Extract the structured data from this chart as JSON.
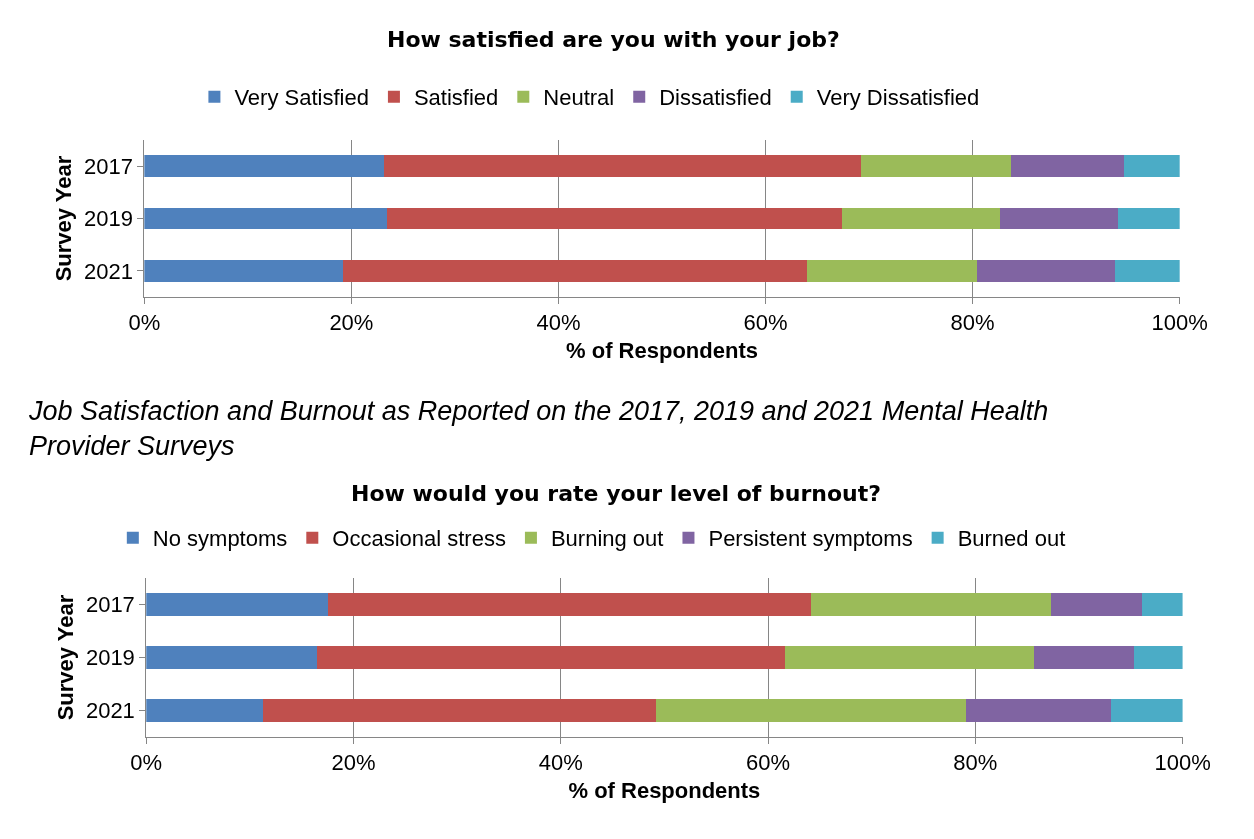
{
  "chart_data": [
    {
      "type": "bar",
      "orientation": "horizontal",
      "stacked": true,
      "title": "How satisfied are you with your job?",
      "xlabel": "% of Respondents",
      "ylabel": "Survey Year",
      "categories": [
        "2017",
        "2019",
        "2021"
      ],
      "xlim": [
        0,
        100
      ],
      "xticks": [
        {
          "value": 0,
          "label": "0%"
        },
        {
          "value": 20,
          "label": "20%"
        },
        {
          "value": 40,
          "label": "40%"
        },
        {
          "value": 60,
          "label": "60%"
        },
        {
          "value": 80,
          "label": "80%"
        },
        {
          "value": 100,
          "label": "100%"
        }
      ],
      "grid": "x",
      "legend": "top",
      "series": [
        {
          "name": "Very Satisfied",
          "color": "#4f81bd",
          "values": [
            23.1,
            23.4,
            19.2
          ]
        },
        {
          "name": "Satisfied",
          "color": "#c0504d",
          "values": [
            46.1,
            44.0,
            44.8
          ]
        },
        {
          "name": "Neutral",
          "color": "#9bbb59",
          "values": [
            14.5,
            15.2,
            16.4
          ]
        },
        {
          "name": "Dissatisfied",
          "color": "#8064a2",
          "values": [
            10.9,
            11.4,
            13.4
          ]
        },
        {
          "name": "Very Dissatisfied",
          "color": "#4bacc6",
          "values": [
            5.4,
            6.0,
            6.2
          ]
        }
      ]
    },
    {
      "type": "bar",
      "orientation": "horizontal",
      "stacked": true,
      "title": "How would you rate your level of burnout?",
      "annotations": [
        "Job Satisfaction and Burnout as Reported on the 2017, 2019 and 2021 Mental Health Provider Surveys"
      ],
      "xlabel": "% of Respondents",
      "ylabel": "Survey Year",
      "categories": [
        "2017",
        "2019",
        "2021"
      ],
      "xlim": [
        0,
        100
      ],
      "xticks": [
        {
          "value": 0,
          "label": "0%"
        },
        {
          "value": 20,
          "label": "20%"
        },
        {
          "value": 40,
          "label": "40%"
        },
        {
          "value": 60,
          "label": "60%"
        },
        {
          "value": 80,
          "label": "80%"
        },
        {
          "value": 100,
          "label": "100%"
        }
      ],
      "grid": "x",
      "legend": "top",
      "series": [
        {
          "name": "No symptoms",
          "color": "#4f81bd",
          "values": [
            17.5,
            16.5,
            11.3
          ]
        },
        {
          "name": "Occasional stress",
          "color": "#c0504d",
          "values": [
            46.6,
            45.1,
            37.9
          ]
        },
        {
          "name": "Burning out",
          "color": "#9bbb59",
          "values": [
            23.2,
            24.1,
            29.9
          ]
        },
        {
          "name": "Persistent symptoms",
          "color": "#8064a2",
          "values": [
            8.8,
            9.6,
            14.0
          ]
        },
        {
          "name": "Burned out",
          "color": "#4bacc6",
          "values": [
            3.9,
            4.7,
            6.9
          ]
        }
      ]
    }
  ]
}
